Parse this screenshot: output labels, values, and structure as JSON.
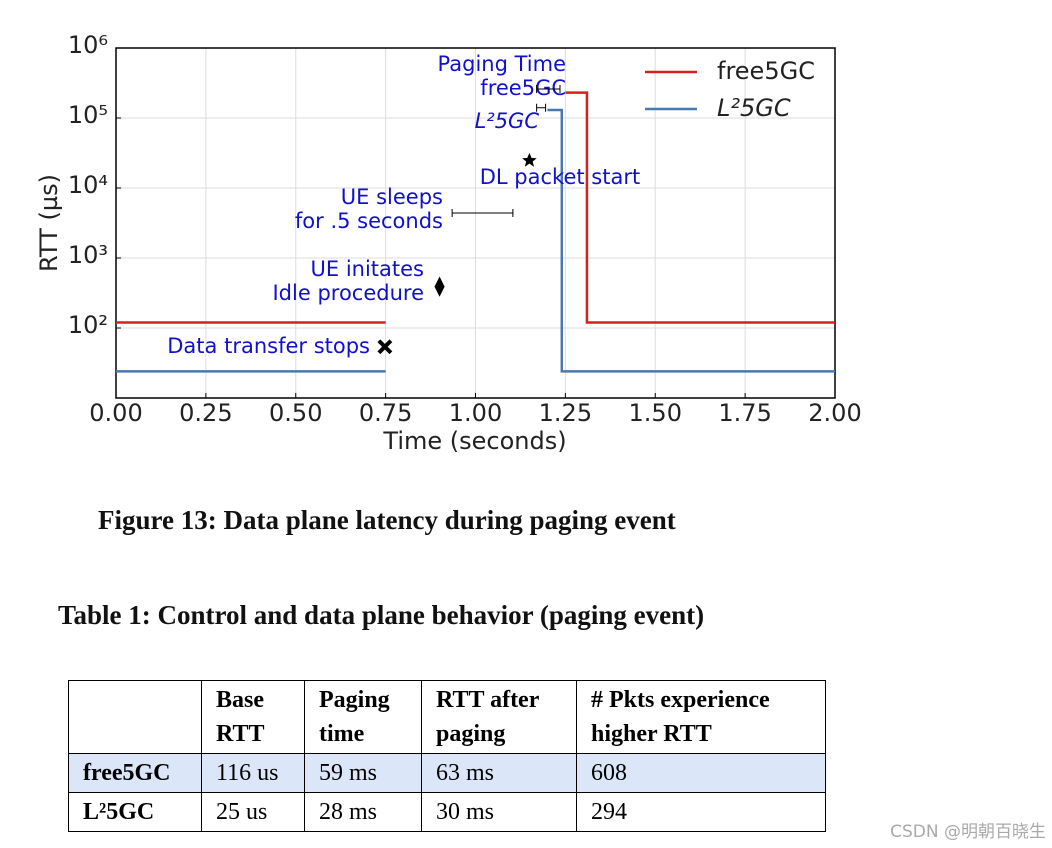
{
  "chart_data": {
    "type": "line",
    "x_label": "Time (seconds)",
    "y_label": "RTT (µs)",
    "log_y": true,
    "xlim": [
      0,
      2
    ],
    "ylim": [
      10,
      1000000
    ],
    "xticks": [
      {
        "value": 0,
        "label": "0.00"
      },
      {
        "value": 0.25,
        "label": "0.25"
      },
      {
        "value": 0.5,
        "label": "0.50"
      },
      {
        "value": 0.75,
        "label": "0.75"
      },
      {
        "value": 1,
        "label": "1.00"
      },
      {
        "value": 1.25,
        "label": "1.25"
      },
      {
        "value": 1.5,
        "label": "1.50"
      },
      {
        "value": 1.75,
        "label": "1.75"
      },
      {
        "value": 2,
        "label": "2.00"
      }
    ],
    "yticks": [
      {
        "value": 100,
        "label": "10²"
      },
      {
        "value": 1000,
        "label": "10³"
      },
      {
        "value": 10000,
        "label": "10⁴"
      },
      {
        "value": 100000,
        "label": "10⁵"
      },
      {
        "value": 1000000,
        "label": "10⁶"
      }
    ],
    "grid": true,
    "legend": "upper right",
    "series": [
      {
        "name": "free5GC",
        "color": "#d62020",
        "x": [
          0,
          0.75,
          0.75,
          1.25,
          1.31,
          1.31,
          2
        ],
        "values": [
          120,
          120,
          null,
          230000,
          230000,
          120,
          120
        ]
      },
      {
        "name": "L²5GC",
        "color": "#4a78b0",
        "x": [
          0,
          0.75,
          0.75,
          1.2,
          1.24,
          1.24,
          2
        ],
        "values": [
          24,
          24,
          null,
          130000,
          130000,
          24,
          24
        ]
      }
    ],
    "annotations": [
      {
        "lines": [
          "Paging Time",
          "free5GC"
        ],
        "marker": "errorbar",
        "x": [
          1.17,
          1.235
        ],
        "y": 260000
      },
      {
        "lines": [
          "L²5GC"
        ],
        "marker": "errorbar",
        "x": [
          1.17,
          1.195
        ],
        "y": 140000
      },
      {
        "lines": [
          "DL packet start"
        ],
        "marker": "star",
        "x": 1.15,
        "y": 25000
      },
      {
        "lines": [
          "UE sleeps",
          "for .5 seconds"
        ],
        "marker": "errorbar",
        "x": [
          0.935,
          1.104
        ],
        "y": 4400
      },
      {
        "lines": [
          "UE initates",
          "Idle procedure"
        ],
        "marker": "diamond",
        "x": 0.9,
        "y": 390
      },
      {
        "lines": [
          "Data transfer stops"
        ],
        "marker": "cross",
        "x": 0.748,
        "y": 54
      }
    ]
  },
  "figure_caption": "Figure 13: Data plane latency during paging event",
  "table_title": "Table 1: Control and data plane behavior (paging event)",
  "table": {
    "header": [
      "Base RTT",
      "Paging time",
      "RTT after paging",
      "# Pkts experience higher RTT"
    ],
    "rows": [
      [
        "free5GC",
        "116 us",
        "59 ms",
        "63 ms",
        "608"
      ],
      [
        "L²5GC",
        "25 us",
        "28 ms",
        "30 ms",
        "294"
      ]
    ]
  },
  "watermark": "CSDN @明朝百晓生"
}
